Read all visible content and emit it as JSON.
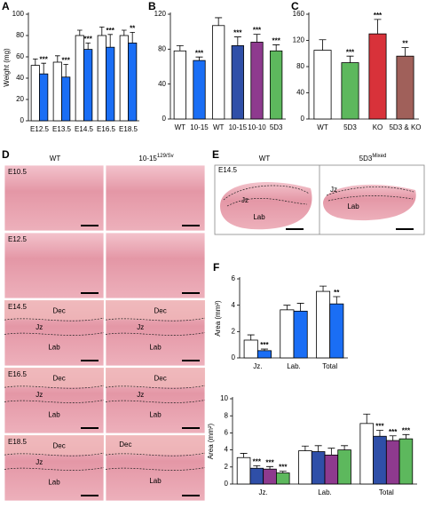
{
  "chart_data": [
    {
      "type": "bar",
      "panel_label": "A",
      "ylabel": "Weight (mg)",
      "categories": [
        "E12.5",
        "E13.5",
        "E14.5",
        "E16.5",
        "E18.5"
      ],
      "ylim": [
        0,
        100
      ],
      "yticks": [
        0,
        20,
        40,
        60,
        80,
        100
      ],
      "series": [
        {
          "color": "#ffffff",
          "values": [
            52,
            55,
            80,
            80,
            80
          ],
          "errors": [
            6,
            6,
            5,
            8,
            5
          ]
        },
        {
          "color": "#1a6ef5",
          "values": [
            44,
            41,
            67,
            69,
            73
          ],
          "errors": [
            10,
            12,
            6,
            12,
            10
          ],
          "annotations": [
            "***",
            "***",
            "***",
            "***",
            "**"
          ]
        }
      ]
    },
    {
      "type": "bar",
      "panel_label": "B",
      "categories": [
        "WT",
        "10-15",
        "WT",
        "10-15",
        "10-10",
        "5D3"
      ],
      "values": [
        78,
        67,
        107,
        84,
        88,
        78
      ],
      "errors": [
        6,
        4,
        9,
        10,
        9,
        7
      ],
      "colors": [
        "#ffffff",
        "#1a6ef5",
        "#ffffff",
        "#2f4fa8",
        "#8e3a8e",
        "#5db85d"
      ],
      "annotations": [
        null,
        "***",
        null,
        "***",
        "***",
        "***"
      ],
      "ylim": [
        0,
        120
      ],
      "yticks": [
        0,
        40,
        80,
        120
      ]
    },
    {
      "type": "bar",
      "panel_label": "C",
      "categories": [
        "WT",
        "5D3",
        "KO",
        "5D3 & KO"
      ],
      "values": [
        105,
        86,
        130,
        96
      ],
      "errors": [
        16,
        10,
        22,
        13
      ],
      "colors": [
        "#ffffff",
        "#5db85d",
        "#d8323a",
        "#a0605a"
      ],
      "annotations": [
        null,
        "***",
        "***",
        "**"
      ],
      "ylim": [
        0,
        160
      ],
      "yticks": [
        0,
        40,
        80,
        120,
        160
      ]
    },
    {
      "type": "bar",
      "panel_label": "F",
      "ylabel": "Area (mm²)",
      "categories": [
        "Jz.",
        "Lab.",
        "Total"
      ],
      "ylim": [
        0,
        6
      ],
      "yticks": [
        0,
        2,
        4,
        6
      ],
      "series": [
        {
          "color": "#ffffff",
          "values": [
            1.35,
            3.65,
            5.05
          ],
          "errors": [
            0.4,
            0.35,
            0.4
          ]
        },
        {
          "color": "#1a6ef5",
          "values": [
            0.55,
            3.55,
            4.1
          ],
          "errors": [
            0.12,
            0.6,
            0.55
          ],
          "annotations": [
            "***",
            null,
            "**"
          ]
        }
      ]
    },
    {
      "type": "bar",
      "ylabel": "Area (mm²)",
      "categories": [
        "Jz.",
        "Lab.",
        "Total"
      ],
      "ylim": [
        0,
        10
      ],
      "yticks": [
        0,
        2,
        4,
        6,
        8,
        10
      ],
      "series": [
        {
          "color": "#ffffff",
          "values": [
            3.1,
            3.9,
            7.1
          ],
          "errors": [
            0.5,
            0.55,
            1.1
          ]
        },
        {
          "color": "#2f4fa8",
          "values": [
            1.85,
            3.8,
            5.6
          ],
          "errors": [
            0.3,
            0.7,
            0.7
          ],
          "annotations": [
            "***",
            null,
            "***"
          ]
        },
        {
          "color": "#8e3a8e",
          "values": [
            1.75,
            3.4,
            5.1
          ],
          "errors": [
            0.3,
            0.8,
            0.55
          ],
          "annotations": [
            "***",
            null,
            "***"
          ]
        },
        {
          "color": "#5db85d",
          "values": [
            1.3,
            4.0,
            5.3
          ],
          "errors": [
            0.2,
            0.5,
            0.5
          ],
          "annotations": [
            "***",
            null,
            "***"
          ]
        }
      ]
    }
  ],
  "panels": {
    "D": {
      "letter": "D",
      "columns": [
        {
          "text": "WT"
        },
        {
          "text": "10-15",
          "sup": "129/Sv"
        }
      ],
      "rows": [
        {
          "stage": "E10.5",
          "left": [],
          "right": []
        },
        {
          "stage": "E12.5",
          "left": [],
          "right": []
        },
        {
          "stage": "E14.5",
          "left": [
            "Dec",
            "Jz",
            "Lab"
          ],
          "right": [
            "Dec",
            "Jz",
            "Lab"
          ]
        },
        {
          "stage": "E16.5",
          "left": [
            "Dec",
            "Jz",
            "Lab"
          ],
          "right": [
            "Dec",
            "Jz",
            "Lab"
          ]
        },
        {
          "stage": "E18.5",
          "left": [
            "Dec",
            "Jz",
            "Lab"
          ],
          "right": [
            "Dec",
            "Lab"
          ]
        }
      ]
    },
    "E": {
      "letter": "E",
      "columns": [
        {
          "text": "WT"
        },
        {
          "text": "5D3",
          "sup": "Mixed"
        }
      ],
      "stage": "E14.5",
      "left": [
        "Jz",
        "Lab"
      ],
      "right": [
        "Jz",
        "Lab"
      ]
    }
  }
}
